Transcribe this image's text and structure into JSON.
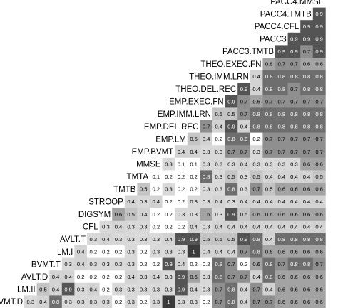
{
  "chart_data": {
    "type": "heatmap",
    "title": "",
    "xlabel": "",
    "ylabel": "",
    "grid": false,
    "legend": "none",
    "colors": {
      "background": "#ffffff",
      "light_text": "#ffffff",
      "dark_text": "#000000",
      "grey_scale": {
        "0.0": "#ffffff",
        "0.1": "#ffffff",
        "0.2": "#ffffff",
        "0.3": "#d9d9d9",
        "0.4": "#d3d3d3",
        "0.5": "#c4c4c4",
        "0.6": "#a3a3a3",
        "0.7": "#8f8f8f",
        "0.8": "#6e6e6e",
        "0.9": "#545454",
        "1": "#3a3a3a"
      }
    },
    "variables": [
      "BVMT.D",
      "LM.II",
      "AVLT.D",
      "BVMT.T",
      "LM.I",
      "AVLT.T",
      "CFL",
      "DIGSYM",
      "STROOP",
      "TMTB",
      "TMTA",
      "MMSE",
      "EMP.BVMT",
      "EMP.LM",
      "EMP.DEL.REC",
      "EMP.IMM.LRN",
      "EMP.EXEC.FN",
      "THEO.DEL.REC",
      "THEO.IMM.LRN",
      "THEO.EXEC.FN",
      "PACC3.TMTB",
      "PACC3",
      "PACC4.CFL",
      "PACC4.TMTB",
      "PACC4.MMSE"
    ],
    "rows": [
      {
        "label": "PACC4.MMSE",
        "values": []
      },
      {
        "label": "PACC4.TMTB",
        "values": [
          "0.9"
        ]
      },
      {
        "label": "PACC4.CFL",
        "values": [
          "0.9",
          "0.9"
        ]
      },
      {
        "label": "PACC3",
        "values": [
          "0.9",
          "0.9",
          "0.9"
        ]
      },
      {
        "label": "PACC3.TMTB",
        "values": [
          "0.9",
          "0.9",
          "0.7",
          "0.9"
        ]
      },
      {
        "label": "THEO.EXEC.FN",
        "values": [
          "0.6",
          "0.7",
          "0.7",
          "0.6",
          "0.6"
        ]
      },
      {
        "label": "THEO.IMM.LRN",
        "values": [
          "0.4",
          "0.8",
          "0.8",
          "0.8",
          "0.8",
          "0.8"
        ]
      },
      {
        "label": "THEO.DEL.REC",
        "values": [
          "0.9",
          "0.4",
          "0.8",
          "0.8",
          "0.7",
          "0.8",
          "0.8"
        ]
      },
      {
        "label": "EMP.EXEC.FN",
        "values": [
          "0.9",
          "0.7",
          "0.6",
          "0.7",
          "0.7",
          "0.7",
          "0.7",
          "0.7"
        ]
      },
      {
        "label": "EMP.IMM.LRN",
        "values": [
          "0.5",
          "0.5",
          "0.7",
          "0.8",
          "0.8",
          "0.8",
          "0.8",
          "0.8",
          "0.8"
        ]
      },
      {
        "label": "EMP.DEL.REC",
        "values": [
          "0.7",
          "0.4",
          "0.9",
          "0.4",
          "0.8",
          "0.8",
          "0.8",
          "0.8",
          "0.8",
          "0.8"
        ]
      },
      {
        "label": "EMP.LM",
        "values": [
          "0.5",
          "0.4",
          "0.2",
          "0.8",
          "0.8",
          "0.2",
          "0.7",
          "0.7",
          "0.7",
          "0.7",
          "0.7"
        ]
      },
      {
        "label": "EMP.BVMT",
        "values": [
          "0.4",
          "0.4",
          "0.3",
          "0.3",
          "0.7",
          "0.7",
          "0.3",
          "0.7",
          "0.7",
          "0.7",
          "0.7",
          "0.7"
        ]
      },
      {
        "label": "MMSE",
        "values": [
          "0.3",
          "0.1",
          "0.1",
          "0.3",
          "0.3",
          "0.3",
          "0.4",
          "0.3",
          "0.3",
          "0.3",
          "0.3",
          "0.6",
          "0.6"
        ]
      },
      {
        "label": "TMTA",
        "values": [
          "0.1",
          "0.2",
          "0.2",
          "0.2",
          "0.8",
          "0.3",
          "0.5",
          "0.3",
          "0.5",
          "0.4",
          "0.4",
          "0.4",
          "0.4",
          "0.5"
        ]
      },
      {
        "label": "TMTB",
        "values": [
          "0.5",
          "0.2",
          "0.3",
          "0.2",
          "0.2",
          "0.3",
          "0.3",
          "0.8",
          "0.3",
          "0.7",
          "0.5",
          "0.6",
          "0.6",
          "0.6",
          "0.6"
        ]
      },
      {
        "label": "STROOP",
        "values": [
          "0.4",
          "0.3",
          "0.4",
          "0.2",
          "0.2",
          "0.3",
          "0.3",
          "0.4",
          "0.3",
          "0.4",
          "0.4",
          "0.4",
          "0.4",
          "0.4",
          "0.4",
          "0.4"
        ]
      },
      {
        "label": "DIGSYM",
        "values": [
          "0.6",
          "0.5",
          "0.4",
          "0.2",
          "0.2",
          "0.3",
          "0.3",
          "0.6",
          "0.3",
          "0.9",
          "0.5",
          "0.6",
          "0.6",
          "0.6",
          "0.6",
          "0.6",
          "0.6"
        ]
      },
      {
        "label": "CFL",
        "values": [
          "0.3",
          "0.4",
          "0.3",
          "0.3",
          "0.2",
          "0.2",
          "0.2",
          "0.4",
          "0.3",
          "0.4",
          "0.4",
          "0.4",
          "0.4",
          "0.4",
          "0.4",
          "0.4",
          "0.4",
          "0.4"
        ]
      },
      {
        "label": "AVLT.T",
        "values": [
          "0.3",
          "0.4",
          "0.3",
          "0.3",
          "0.3",
          "0.3",
          "0.4",
          "0.9",
          "0.9",
          "0.5",
          "0.5",
          "0.5",
          "0.9",
          "0.8",
          "0.4",
          "0.8",
          "0.8",
          "0.8",
          "0.8"
        ]
      },
      {
        "label": "LM.I",
        "values": [
          "0.4",
          "0.2",
          "0.2",
          "0.2",
          "0.3",
          "0.2",
          "0.3",
          "0.3",
          "0.3",
          "1",
          "0.4",
          "0.4",
          "0.4",
          "0.7",
          "0.8",
          "0.6",
          "0.6",
          "0.6",
          "0.6",
          "0.6"
        ]
      },
      {
        "label": "BVMT.T",
        "values": [
          "0.3",
          "0.4",
          "0.3",
          "0.3",
          "0.3",
          "0.3",
          "0.2",
          "0.2",
          "0.9",
          "0.4",
          "0.2",
          "0.2",
          "0.8",
          "0.7",
          "0.2",
          "0.6",
          "0.8",
          "0.7",
          "0.8",
          "0.8",
          "0.7"
        ]
      },
      {
        "label": "AVLT.D",
        "values": [
          "0.4",
          "0.4",
          "0.2",
          "0.2",
          "0.2",
          "0.2",
          "0.4",
          "0.3",
          "0.4",
          "0.3",
          "0.9",
          "0.6",
          "0.3",
          "0.8",
          "0.7",
          "0.7",
          "0.4",
          "0.8",
          "0.6",
          "0.6",
          "0.6",
          "0.6"
        ]
      },
      {
        "label": "LM.II",
        "values": [
          "0.5",
          "0.4",
          "0.9",
          "0.3",
          "0.4",
          "0.2",
          "0.3",
          "0.3",
          "0.3",
          "0.3",
          "0.3",
          "0.9",
          "0.4",
          "0.3",
          "0.7",
          "0.8",
          "0.4",
          "0.7",
          "0.4",
          "0.6",
          "0.6",
          "0.6",
          "0.6"
        ]
      },
      {
        "label": "BVMT.D",
        "values": [
          "0.3",
          "0.4",
          "0.8",
          "0.3",
          "0.3",
          "0.3",
          "0.3",
          "0.2",
          "0.3",
          "0.2",
          "0.3",
          "1",
          "0.3",
          "0.3",
          "0.2",
          "0.7",
          "0.8",
          "0.4",
          "0.7",
          "0.7",
          "0.6",
          "0.6",
          "0.6",
          "0.6"
        ]
      }
    ]
  }
}
